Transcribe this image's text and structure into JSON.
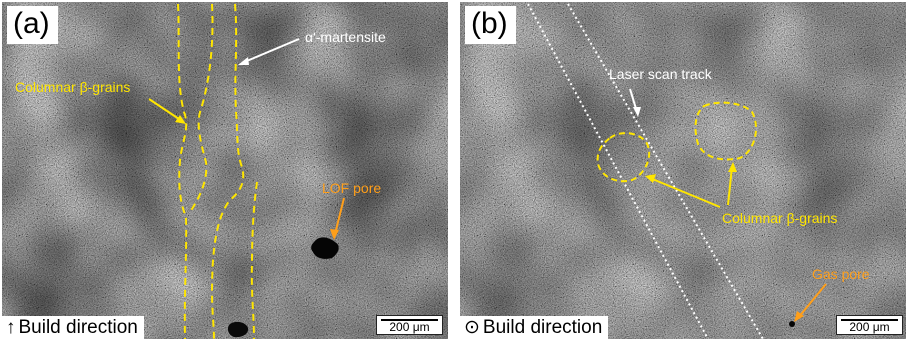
{
  "colors": {
    "annotation_yellow": "#ffe600",
    "annotation_orange": "#ff9f1a",
    "annotation_white": "#ffffff"
  },
  "panel_a": {
    "letter": "(a)",
    "labels": {
      "martensite": "α'-martensite",
      "columnar": "Columnar β-grains",
      "lof_pore": "LOF pore"
    },
    "build_icon": "up-arrow-icon",
    "build_symbol": "↑",
    "build_direction": "Build direction",
    "scale": "200 μm"
  },
  "panel_b": {
    "letter": "(b)",
    "labels": {
      "laser_track": "Laser scan track",
      "columnar": "Columnar β-grains",
      "gas_pore": "Gas pore"
    },
    "build_icon": "circle-dot-icon",
    "build_symbol": "⊙",
    "build_direction": "Build direction",
    "scale": "200 μm"
  }
}
